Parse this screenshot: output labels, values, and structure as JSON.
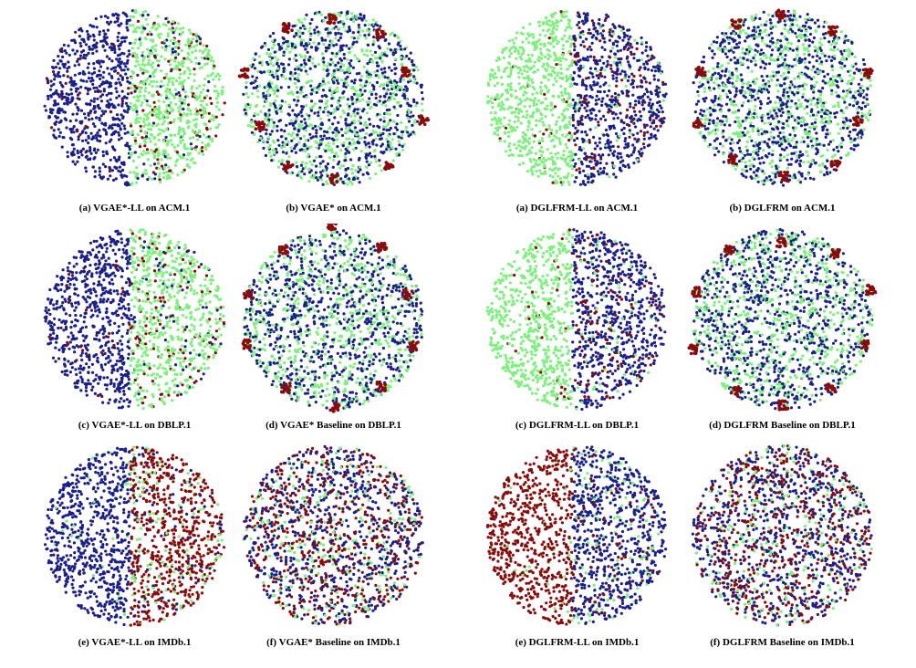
{
  "colors": {
    "class_a": "#1b1f8c",
    "class_b": "#7cf27c",
    "class_c": "#8b0a0a"
  },
  "panels": [
    {
      "id": "p1",
      "caption": "(a) VGAE*-LL on ACM.1",
      "style": "split",
      "classes": [
        "class_a",
        "class_b",
        "class_c"
      ]
    },
    {
      "id": "p2",
      "caption": "(b) VGAE* on ACM.1",
      "style": "clusters",
      "classes": [
        "class_a",
        "class_b",
        "class_c"
      ]
    },
    {
      "id": "p3",
      "caption": "(a) DGLFRM-LL on ACM.1",
      "style": "split",
      "classes": [
        "class_b",
        "class_a",
        "class_c"
      ]
    },
    {
      "id": "p4",
      "caption": "(b) DGLFRM on ACM.1",
      "style": "clusters",
      "classes": [
        "class_a",
        "class_b",
        "class_c"
      ]
    },
    {
      "id": "p5",
      "caption": "(c) VGAE*-LL on DBLP.1",
      "style": "split",
      "classes": [
        "class_a",
        "class_b",
        "class_c"
      ]
    },
    {
      "id": "p6",
      "caption": "(d) VGAE* Baseline on DBLP.1",
      "style": "clusters",
      "classes": [
        "class_a",
        "class_b",
        "class_c"
      ]
    },
    {
      "id": "p7",
      "caption": "(c) DGLFRM-LL on DBLP.1",
      "style": "split",
      "classes": [
        "class_b",
        "class_a",
        "class_c"
      ]
    },
    {
      "id": "p8",
      "caption": "(d) DGLFRM Baseline on DBLP.1",
      "style": "clusters",
      "classes": [
        "class_a",
        "class_b",
        "class_c"
      ]
    },
    {
      "id": "p9",
      "caption": "(e) VGAE*-LL on IMDb.1",
      "style": "split",
      "classes": [
        "class_a",
        "class_c",
        "class_b"
      ]
    },
    {
      "id": "p10",
      "caption": "(f) VGAE* Baseline on IMDb.1",
      "style": "mixed",
      "classes": [
        "class_a",
        "class_c",
        "class_b"
      ]
    },
    {
      "id": "p11",
      "caption": "(e) DGLFRM-LL on IMDb.1",
      "style": "split",
      "classes": [
        "class_c",
        "class_a",
        "class_b"
      ]
    },
    {
      "id": "p12",
      "caption": "(f) DGLFRM Baseline on IMDb.1",
      "style": "mixed",
      "classes": [
        "class_a",
        "class_c",
        "class_b"
      ]
    }
  ]
}
